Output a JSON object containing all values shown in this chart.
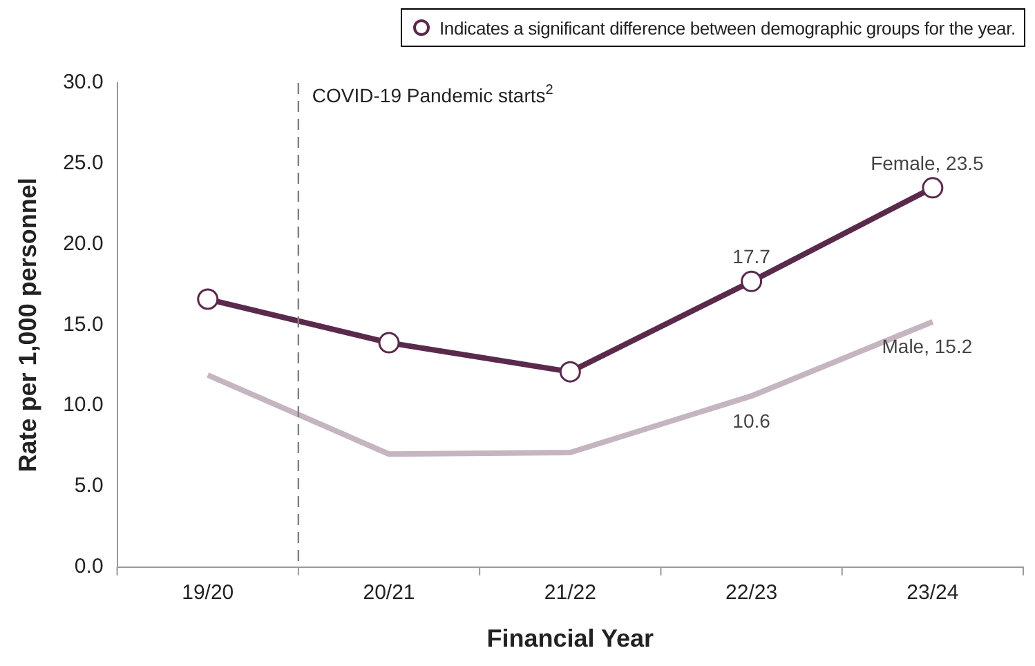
{
  "chart_data": {
    "type": "line",
    "xlabel": "Financial Year",
    "ylabel": "Rate per 1,000 personnel",
    "categories": [
      "19/20",
      "20/21",
      "21/22",
      "22/23",
      "23/24"
    ],
    "ylim": [
      0,
      30
    ],
    "yticks": [
      {
        "value": 0,
        "label": "0.0"
      },
      {
        "value": 5,
        "label": "5.0"
      },
      {
        "value": 10,
        "label": "10.0"
      },
      {
        "value": 15,
        "label": "15.0"
      },
      {
        "value": 20,
        "label": "20.0"
      },
      {
        "value": 25,
        "label": "25.0"
      },
      {
        "value": 30,
        "label": "30.0"
      }
    ],
    "grid": false,
    "legend": false,
    "series": [
      {
        "name": "Female,",
        "color": "#5a2a4c",
        "marker": "circle",
        "values": [
          16.6,
          13.9,
          12.1,
          17.7,
          23.5
        ],
        "value_labels": [
          null,
          null,
          null,
          "17.7",
          "23.5"
        ]
      },
      {
        "name": "Male,",
        "color": "#c5b5c0",
        "marker": "none",
        "values": [
          11.9,
          7.0,
          7.1,
          10.6,
          15.2
        ],
        "value_labels": [
          null,
          null,
          null,
          "10.6",
          "15.2"
        ]
      }
    ],
    "annotations": [
      "Indicates a significant difference between demographic groups for the year.",
      "COVID-19 Pandemic starts$^{2}$"
    ]
  }
}
